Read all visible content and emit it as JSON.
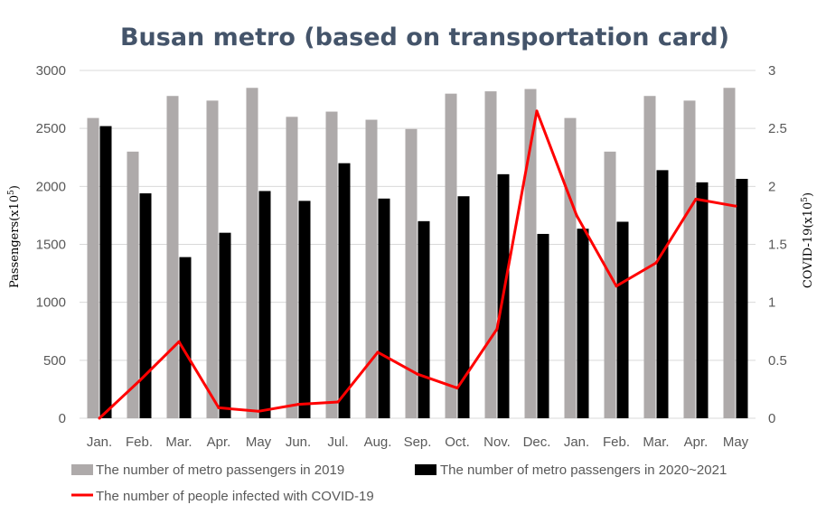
{
  "chart_data": {
    "type": "bar",
    "title": "Busan metro (based on transportation card)",
    "categories": [
      "Jan.",
      "Feb.",
      "Mar.",
      "Apr.",
      "May",
      "Jun.",
      "Jul.",
      "Aug.",
      "Sep.",
      "Oct.",
      "Nov.",
      "Dec.",
      "Jan.",
      "Feb.",
      "Mar.",
      "Apr.",
      "May"
    ],
    "ylabel": "Passengers",
    "ylabel_unit": "(x10",
    "ylabel_exp": "5",
    "ylabel_close": ")",
    "y2label": "COVID-19",
    "y2label_unit": "(x10",
    "y2label_exp": "5",
    "y2label_close": ")",
    "ylim": [
      0,
      3000
    ],
    "y2lim": [
      0,
      3
    ],
    "yticks": [
      "0",
      "500",
      "1000",
      "1500",
      "2000",
      "2500",
      "3000"
    ],
    "y2ticks": [
      "0",
      "0.5",
      "1",
      "1.5",
      "2",
      "2.5",
      "3"
    ],
    "grid": true,
    "legend_position": "bottom",
    "series": [
      {
        "name": "The number of metro passengers in 2019",
        "type": "bar",
        "axis": "left",
        "color": "#aeaaaa",
        "values": [
          2590,
          2300,
          2780,
          2740,
          2850,
          2600,
          2645,
          2575,
          2495,
          2800,
          2820,
          2840,
          2590,
          2300,
          2780,
          2740,
          2850
        ]
      },
      {
        "name": "The number of metro passengers in 2020~2021",
        "type": "bar",
        "axis": "left",
        "color": "#000000",
        "values": [
          2520,
          1940,
          1390,
          1600,
          1960,
          1875,
          2200,
          1895,
          1700,
          1915,
          2105,
          1590,
          1635,
          1695,
          2140,
          2035,
          2065
        ]
      },
      {
        "name": "The number of people infected with COVID-19",
        "type": "line",
        "axis": "right",
        "color": "#ff0000",
        "values": [
          0.0,
          0.32,
          0.66,
          0.09,
          0.06,
          0.12,
          0.14,
          0.57,
          0.38,
          0.26,
          0.77,
          2.65,
          1.75,
          1.14,
          1.34,
          1.89,
          1.83
        ]
      }
    ]
  }
}
